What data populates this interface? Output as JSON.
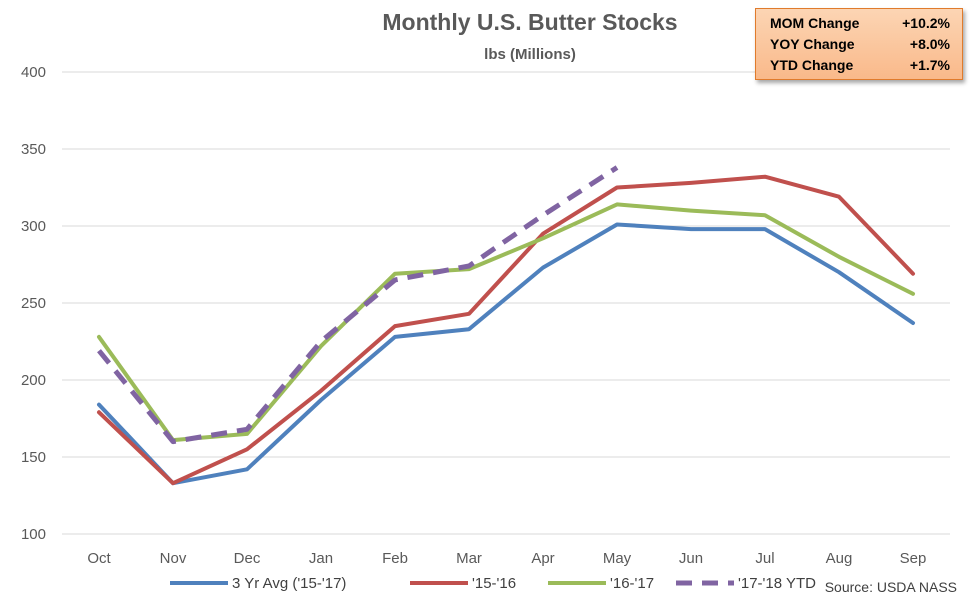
{
  "chart_data": {
    "type": "line",
    "title": "Monthly U.S. Butter Stocks",
    "subtitle": "lbs (Millions)",
    "categories": [
      "Oct",
      "Nov",
      "Dec",
      "Jan",
      "Feb",
      "Mar",
      "Apr",
      "May",
      "Jun",
      "Jul",
      "Aug",
      "Sep"
    ],
    "ylim": [
      100,
      400
    ],
    "yticks": [
      100,
      150,
      200,
      250,
      300,
      350,
      400
    ],
    "grid": true,
    "legend_position": "bottom",
    "source": "Source: USDA NASS",
    "series": [
      {
        "name": "3 Yr Avg ('15-'17)",
        "color": "#4f81bd",
        "dashed": false,
        "values": [
          184,
          133,
          142,
          187,
          228,
          233,
          273,
          301,
          298,
          298,
          270,
          237
        ]
      },
      {
        "name": "'15-'16",
        "color": "#c0504d",
        "dashed": false,
        "values": [
          179,
          133,
          155,
          193,
          235,
          243,
          295,
          325,
          328,
          332,
          319,
          269
        ]
      },
      {
        "name": "'16-'17",
        "color": "#9bbb59",
        "dashed": false,
        "values": [
          228,
          161,
          165,
          222,
          269,
          272,
          292,
          314,
          310,
          307,
          280,
          256
        ]
      },
      {
        "name": "'17-'18 YTD",
        "color": "#8064a2",
        "dashed": true,
        "values": [
          219,
          160,
          168,
          225,
          265,
          274,
          307,
          338,
          null,
          null,
          null,
          null
        ]
      }
    ]
  },
  "stats": [
    {
      "label": "MOM Change",
      "value": "+10.2%"
    },
    {
      "label": "YOY Change",
      "value": "+8.0%"
    },
    {
      "label": "YTD Change",
      "value": "+1.7%"
    }
  ]
}
